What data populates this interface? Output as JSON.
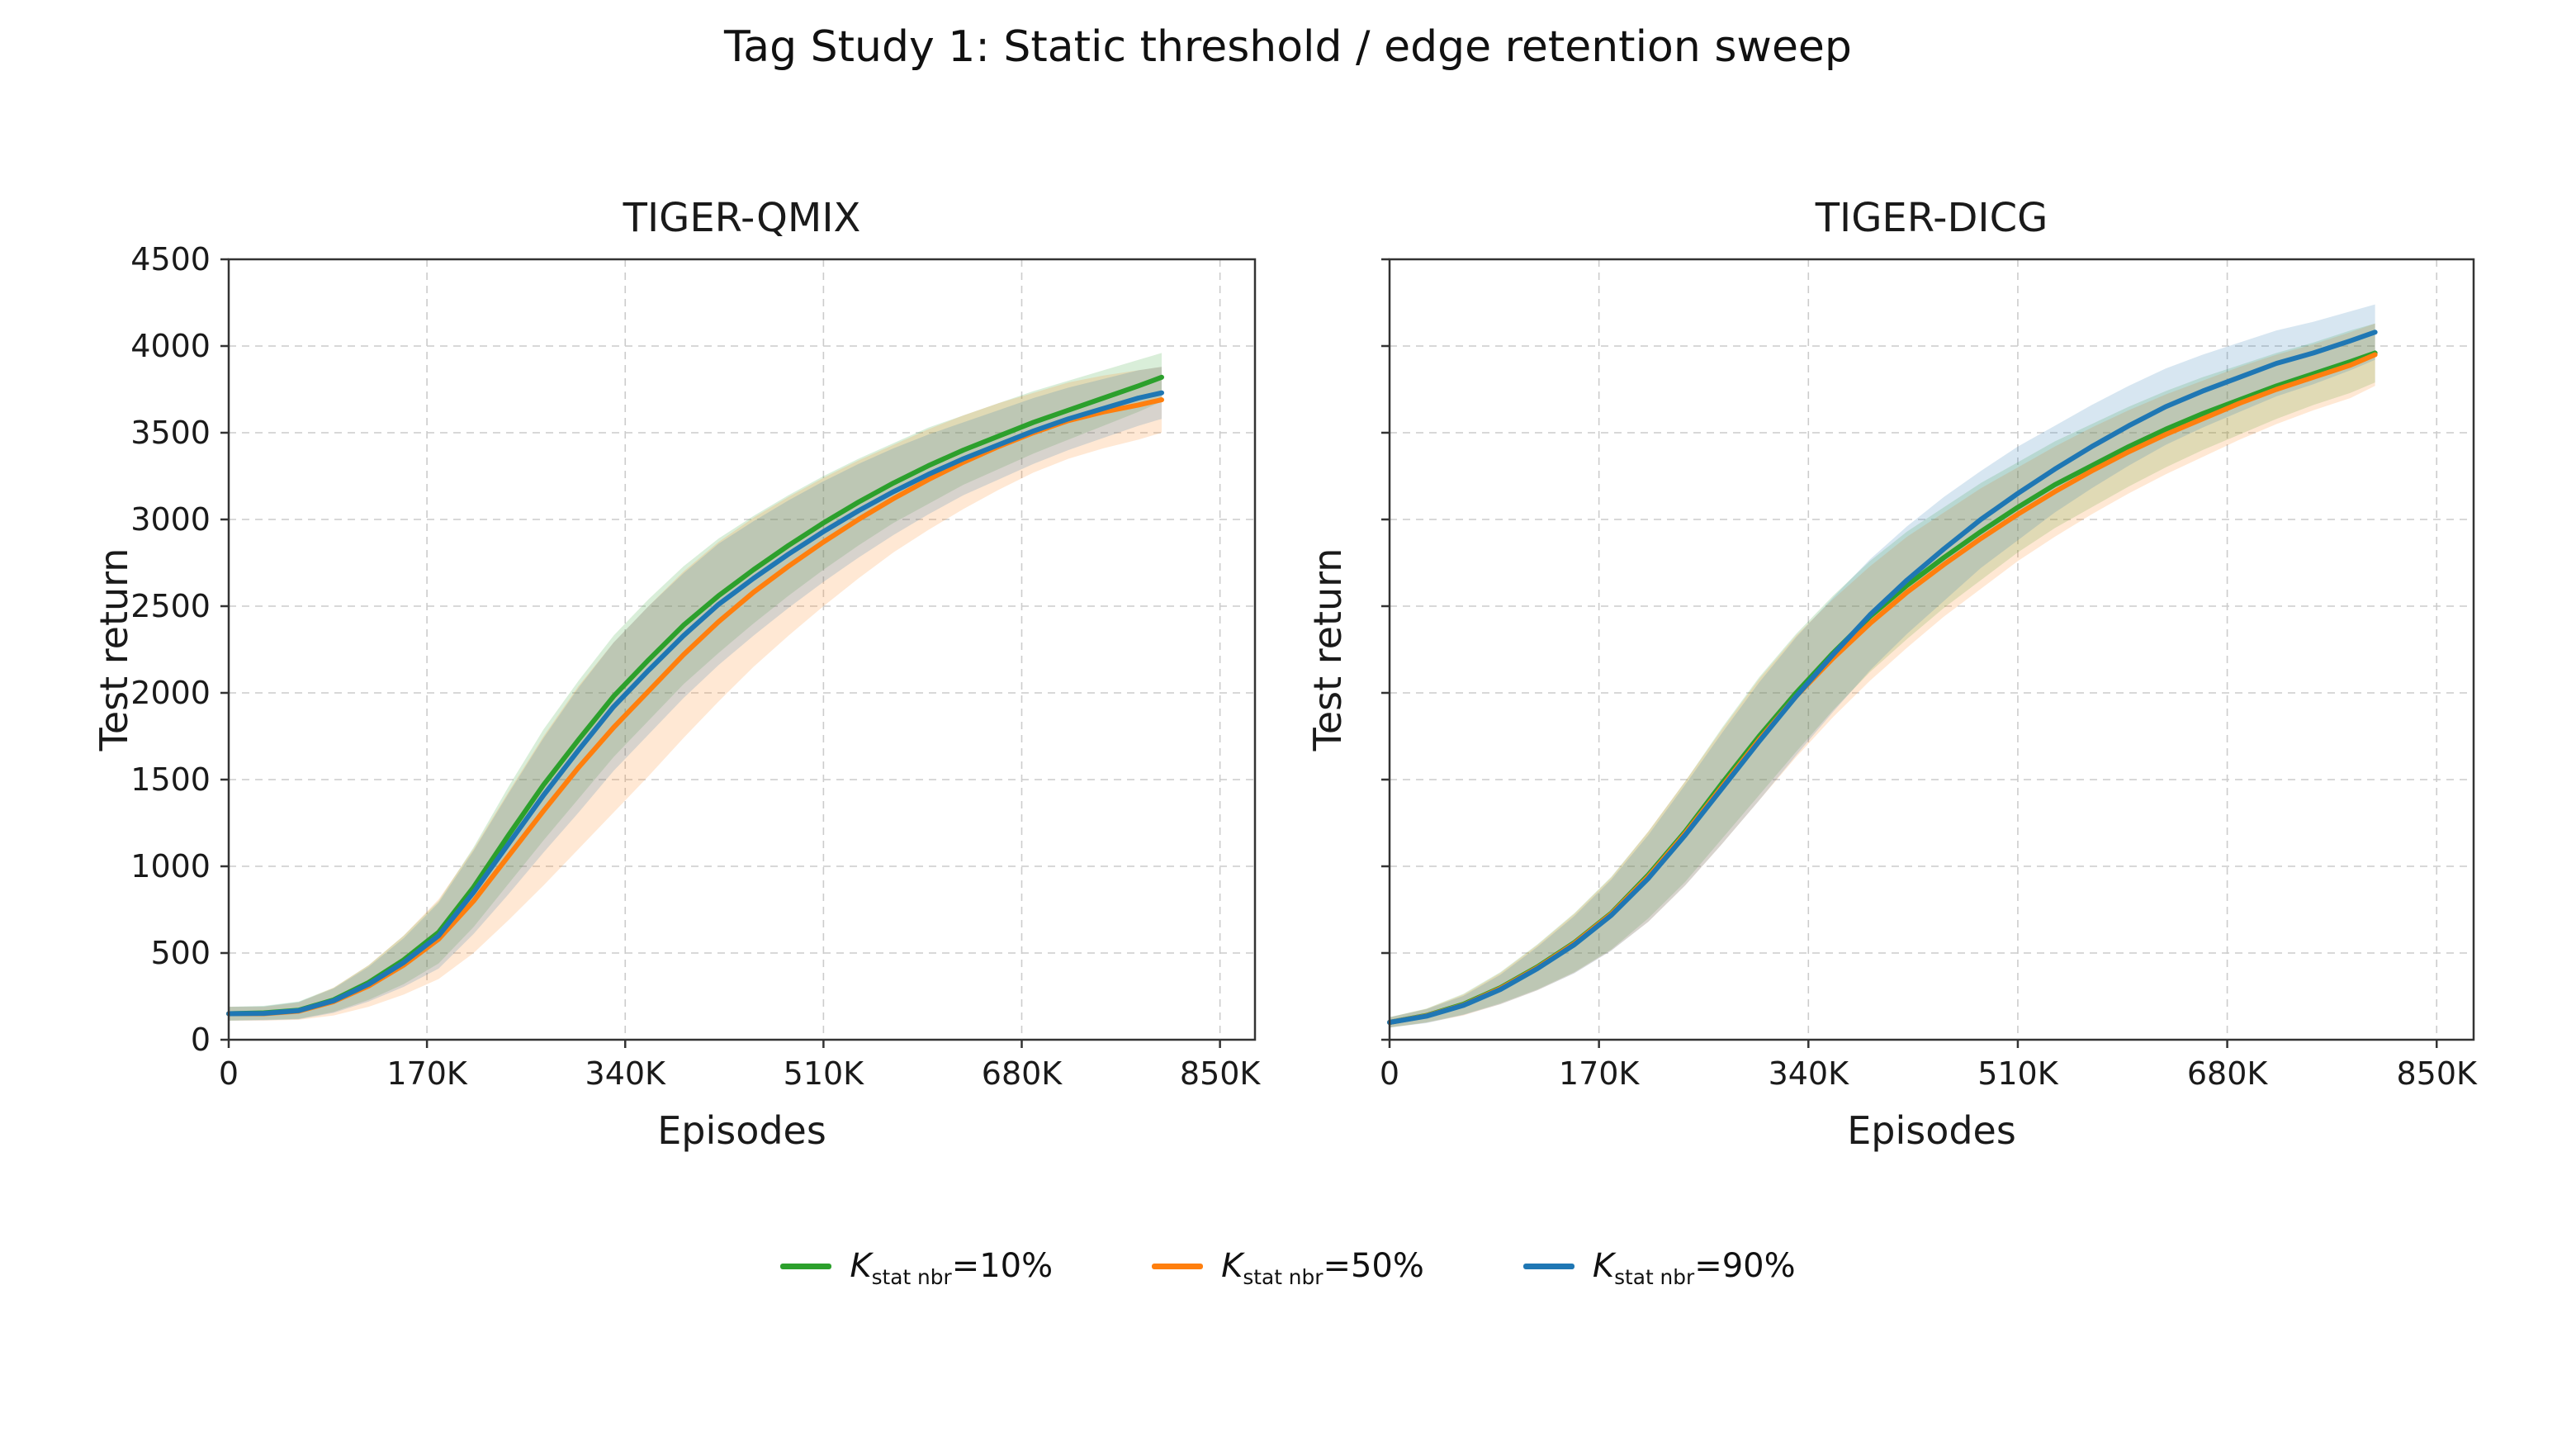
{
  "page": {
    "title": "Tag Study 1: Static threshold / edge retention sweep",
    "background": "#ffffff"
  },
  "colors": {
    "green": "#2ca02c",
    "orange": "#ff7f0e",
    "blue": "#1f77b4",
    "grid": "#cccccc",
    "spine": "#333333",
    "text": "#1a1a1a"
  },
  "legend": {
    "items": [
      {
        "id": "k-stat-nbr-10",
        "color": "#2ca02c",
        "k_italic": "K",
        "subscript": "stat nbr",
        "rest": "=10%"
      },
      {
        "id": "k-stat-nbr-50",
        "color": "#ff7f0e",
        "k_italic": "K",
        "subscript": "stat nbr",
        "rest": "=50%"
      },
      {
        "id": "k-stat-nbr-90",
        "color": "#1f77b4",
        "k_italic": "K",
        "subscript": "stat nbr",
        "rest": "=90%"
      }
    ]
  },
  "chart_data": [
    {
      "type": "line",
      "title": "TIGER-QMIX",
      "xlabel": "Episodes",
      "ylabel": "Test return",
      "xlim": [
        0,
        880
      ],
      "ylim": [
        0,
        4500
      ],
      "show_y_ticklabels": true,
      "grid": "dashed",
      "xticks": {
        "values": [
          0,
          170,
          340,
          510,
          680,
          850
        ],
        "labels": [
          "0",
          "170K",
          "340K",
          "510K",
          "680K",
          "850K"
        ]
      },
      "yticks": {
        "values": [
          0,
          500,
          1000,
          1500,
          2000,
          2500,
          3000,
          3500,
          4000,
          4500
        ],
        "labels": [
          "0",
          "500",
          "1000",
          "1500",
          "2000",
          "2500",
          "3000",
          "3500",
          "4000",
          "4500"
        ]
      },
      "x_units": "thousands of episodes",
      "x": [
        0,
        30,
        60,
        90,
        120,
        150,
        180,
        210,
        240,
        270,
        300,
        330,
        360,
        390,
        420,
        450,
        480,
        510,
        540,
        570,
        600,
        630,
        660,
        690,
        720,
        750,
        780,
        800
      ],
      "series": [
        {
          "name": "Kstat nbr=10%",
          "color": "#2ca02c",
          "values": [
            150,
            155,
            170,
            230,
            330,
            460,
            620,
            880,
            1180,
            1470,
            1730,
            1980,
            2190,
            2390,
            2560,
            2710,
            2850,
            2980,
            3100,
            3210,
            3310,
            3400,
            3480,
            3560,
            3630,
            3700,
            3770,
            3820
          ],
          "band": [
            40,
            40,
            50,
            70,
            100,
            140,
            180,
            230,
            280,
            320,
            340,
            350,
            350,
            340,
            330,
            310,
            290,
            270,
            250,
            230,
            220,
            200,
            190,
            180,
            170,
            160,
            150,
            140
          ]
        },
        {
          "name": "Kstat nbr=50%",
          "color": "#ff7f0e",
          "values": [
            150,
            150,
            165,
            220,
            310,
            430,
            580,
            800,
            1060,
            1320,
            1570,
            1800,
            2010,
            2220,
            2410,
            2580,
            2730,
            2870,
            3000,
            3120,
            3230,
            3330,
            3420,
            3500,
            3570,
            3620,
            3660,
            3690
          ],
          "band": [
            40,
            40,
            50,
            80,
            120,
            170,
            230,
            300,
            370,
            430,
            470,
            490,
            490,
            480,
            460,
            430,
            400,
            370,
            340,
            310,
            290,
            270,
            250,
            230,
            220,
            210,
            200,
            190
          ]
        },
        {
          "name": "Kstat nbr=90%",
          "color": "#1f77b4",
          "values": [
            150,
            152,
            168,
            225,
            320,
            445,
            600,
            850,
            1130,
            1410,
            1670,
            1920,
            2130,
            2330,
            2510,
            2660,
            2800,
            2930,
            3050,
            3160,
            3260,
            3350,
            3430,
            3510,
            3580,
            3640,
            3700,
            3730
          ],
          "band": [
            40,
            40,
            50,
            70,
            100,
            140,
            190,
            240,
            290,
            330,
            360,
            370,
            370,
            360,
            350,
            330,
            310,
            290,
            270,
            250,
            230,
            210,
            200,
            190,
            180,
            170,
            160,
            150
          ]
        }
      ]
    },
    {
      "type": "line",
      "title": "TIGER-DICG",
      "xlabel": "Episodes",
      "ylabel": "Test return",
      "xlim": [
        0,
        880
      ],
      "ylim": [
        0,
        4500
      ],
      "show_y_ticklabels": false,
      "grid": "dashed",
      "xticks": {
        "values": [
          0,
          170,
          340,
          510,
          680,
          850
        ],
        "labels": [
          "0",
          "170K",
          "340K",
          "510K",
          "680K",
          "850K"
        ]
      },
      "yticks": {
        "values": [
          0,
          500,
          1000,
          1500,
          2000,
          2500,
          3000,
          3500,
          4000,
          4500
        ],
        "labels": [
          "0",
          "500",
          "1000",
          "1500",
          "2000",
          "2500",
          "3000",
          "3500",
          "4000",
          "4500"
        ]
      },
      "x_units": "thousands of episodes",
      "x": [
        0,
        30,
        60,
        90,
        120,
        150,
        180,
        210,
        240,
        270,
        300,
        330,
        360,
        390,
        420,
        450,
        480,
        510,
        540,
        570,
        600,
        630,
        660,
        690,
        720,
        750,
        780,
        800
      ],
      "series": [
        {
          "name": "Kstat nbr=10%",
          "color": "#2ca02c",
          "values": [
            100,
            140,
            205,
            300,
            420,
            560,
            730,
            950,
            1200,
            1480,
            1750,
            2000,
            2230,
            2440,
            2620,
            2780,
            2930,
            3070,
            3200,
            3310,
            3420,
            3520,
            3610,
            3690,
            3770,
            3840,
            3910,
            3960
          ],
          "band": [
            30,
            40,
            60,
            90,
            130,
            170,
            210,
            250,
            290,
            320,
            340,
            340,
            330,
            320,
            310,
            290,
            280,
            260,
            250,
            240,
            230,
            220,
            210,
            200,
            190,
            180,
            180,
            170
          ]
        },
        {
          "name": "Kstat nbr=50%",
          "color": "#ff7f0e",
          "values": [
            100,
            138,
            200,
            295,
            415,
            555,
            725,
            940,
            1190,
            1460,
            1730,
            1980,
            2200,
            2400,
            2580,
            2740,
            2890,
            3030,
            3160,
            3280,
            3390,
            3490,
            3580,
            3670,
            3750,
            3820,
            3890,
            3950
          ],
          "band": [
            30,
            40,
            60,
            90,
            130,
            170,
            210,
            260,
            300,
            330,
            350,
            350,
            340,
            330,
            320,
            300,
            290,
            270,
            260,
            250,
            240,
            230,
            220,
            210,
            200,
            190,
            190,
            180
          ]
        },
        {
          "name": "Kstat nbr=90%",
          "color": "#1f77b4",
          "values": [
            100,
            136,
            198,
            290,
            410,
            548,
            718,
            930,
            1180,
            1450,
            1720,
            1980,
            2220,
            2450,
            2650,
            2830,
            3000,
            3150,
            3290,
            3420,
            3540,
            3650,
            3740,
            3820,
            3900,
            3960,
            4030,
            4080
          ],
          "band": [
            30,
            40,
            55,
            85,
            125,
            165,
            205,
            250,
            290,
            320,
            340,
            340,
            330,
            320,
            310,
            300,
            280,
            270,
            250,
            240,
            230,
            220,
            210,
            200,
            190,
            180,
            170,
            160
          ]
        }
      ]
    }
  ]
}
